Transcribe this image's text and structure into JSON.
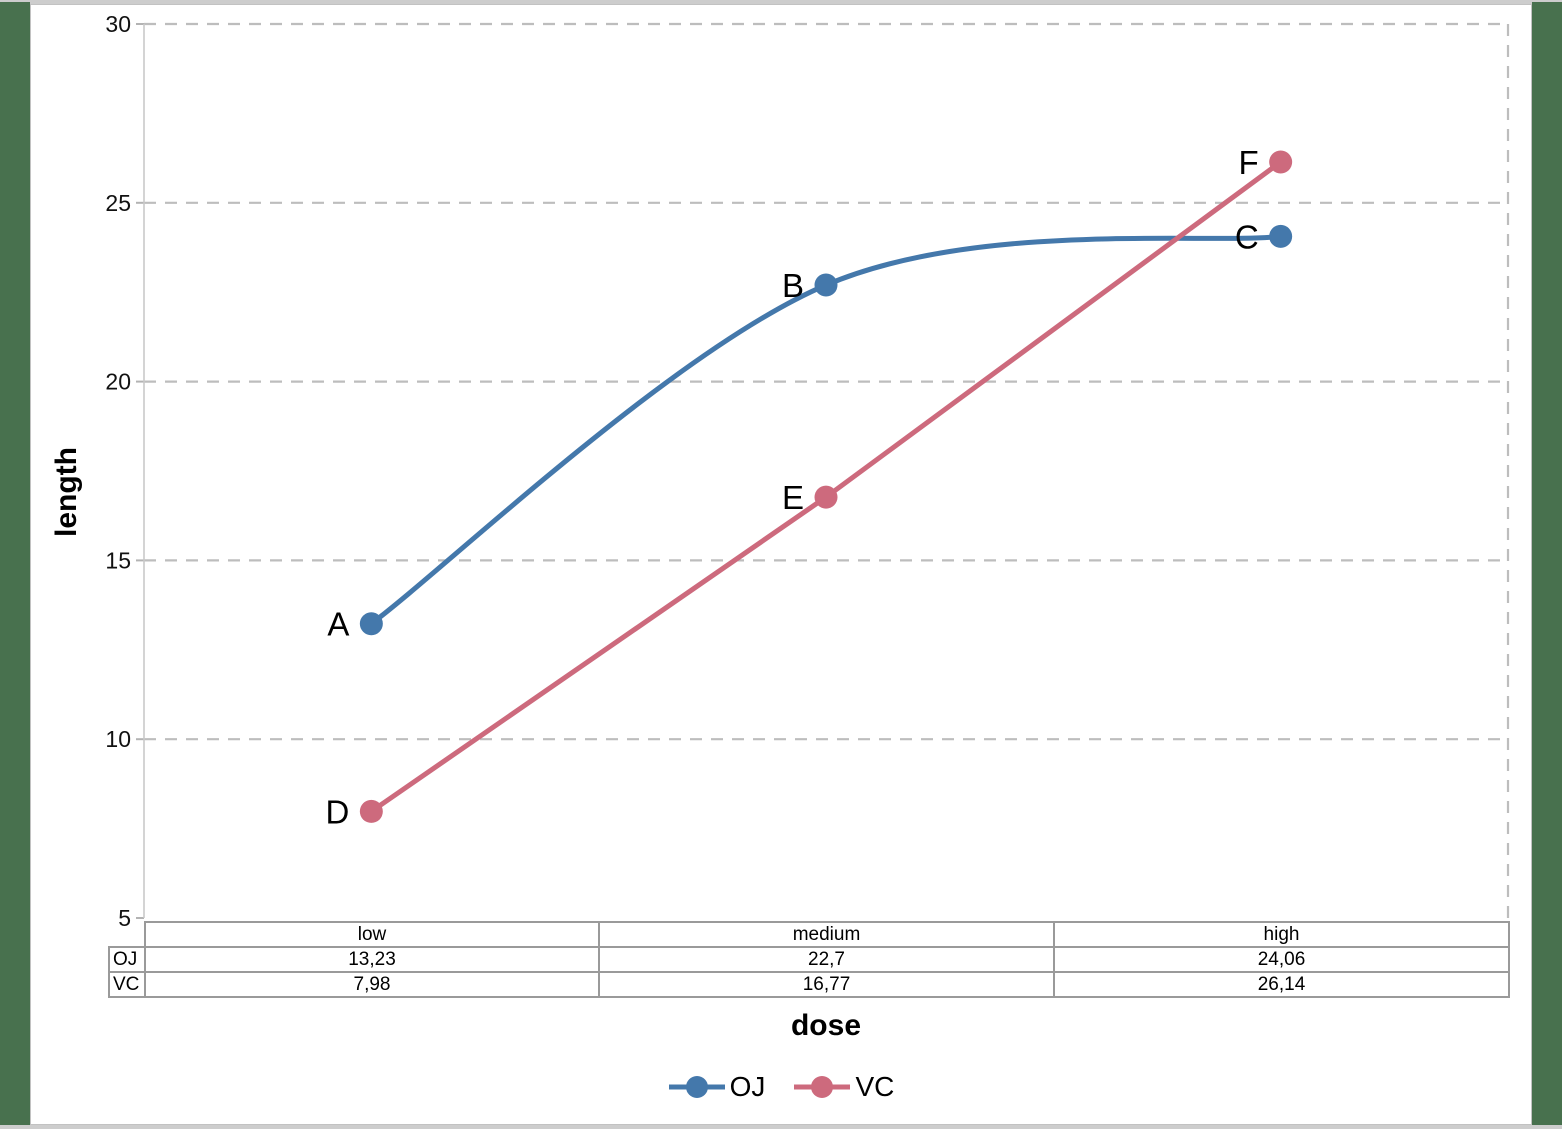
{
  "frame": {
    "desktop_band_color": "#48714e",
    "strip_color": "#cdcdcd",
    "sheet_color": "#ffffff"
  },
  "chart_data": {
    "type": "line",
    "title": "",
    "xlabel": "dose",
    "ylabel": "length",
    "categories": [
      "low",
      "medium",
      "high"
    ],
    "series": [
      {
        "name": "OJ",
        "values": [
          13.23,
          22.7,
          24.06
        ],
        "color": "#4478ab",
        "point_labels": [
          "A",
          "B",
          "C"
        ],
        "smooth": true
      },
      {
        "name": "VC",
        "values": [
          7.98,
          16.77,
          26.14
        ],
        "color": "#cd6a7d",
        "point_labels": [
          "D",
          "E",
          "F"
        ],
        "smooth": false
      }
    ],
    "ylim": [
      5,
      30
    ],
    "yticks": [
      5,
      10,
      15,
      20,
      25,
      30
    ],
    "grid": "horizontal-dashed",
    "legend_position": "bottom",
    "decimal_separator_displayed": ","
  },
  "table": {
    "header": [
      "low",
      "medium",
      "high"
    ],
    "rows": [
      {
        "label": "OJ",
        "cells": [
          "13,23",
          "22,7",
          "24,06"
        ]
      },
      {
        "label": "VC",
        "cells": [
          "7,98",
          "16,77",
          "26,14"
        ]
      }
    ]
  },
  "legend": {
    "items": [
      {
        "label": "OJ",
        "color": "#4478ab"
      },
      {
        "label": "VC",
        "color": "#cd6a7d"
      }
    ]
  }
}
